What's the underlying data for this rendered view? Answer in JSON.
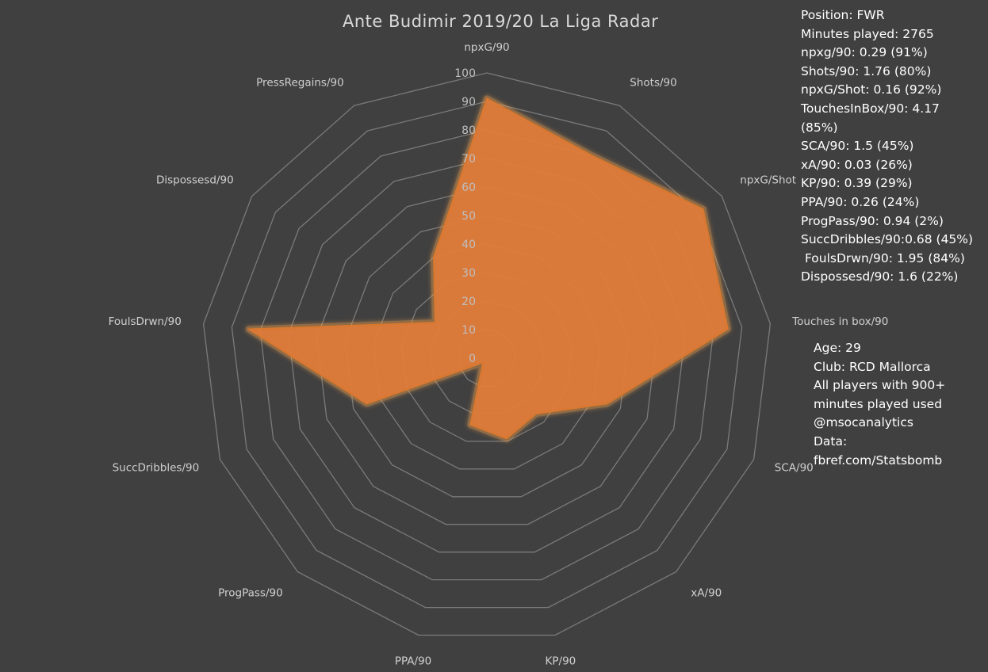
{
  "chart_data": {
    "type": "radar",
    "title": "Ante Budimir 2019/20 La Liga Radar",
    "categories": [
      "npxG/90",
      "Shots/90",
      "npxG/Shot",
      "Touches in box/90",
      "SCA/90",
      "xA/90",
      "KP/90",
      "PPA/90",
      "ProgPass/90",
      "SuccDribbles/90",
      "FoulsDrwn/90",
      "Dispossesd/90",
      "PressRegains/90"
    ],
    "series": [
      {
        "values": [
          91,
          80,
          92,
          85,
          45,
          26,
          29,
          24,
          2,
          45,
          84,
          22,
          40
        ]
      }
    ],
    "rlim": [
      0,
      100
    ],
    "ticks": [
      "0",
      "10",
      "20",
      "30",
      "40",
      "50",
      "60",
      "70",
      "80",
      "90",
      "100"
    ],
    "grid": true,
    "colors": {
      "fill": "#e07b39",
      "edge": "#d9782e",
      "glow": "#f0a050",
      "grid": "#7a7a7a",
      "tick_label": "#bfbfbf",
      "category_label": "#d0d0d0",
      "background": "#404040"
    }
  },
  "stats_lines": [
    "Position: FWR",
    "Minutes played: 2765",
    "npxg/90: 0.29 (91%)",
    "Shots/90: 1.76 (80%)",
    "npxG/Shot: 0.16 (92%)",
    "TouchesInBox/90: 4.17",
    "(85%)",
    "SCA/90: 1.5 (45%)",
    "xA/90: 0.03 (26%)",
    "KP/90: 0.39 (29%)",
    "PPA/90: 0.26 (24%)",
    "ProgPass/90: 0.94 (2%)",
    "SuccDribbles/90:0.68 (45%)",
    " FoulsDrwn/90: 1.95 (84%)",
    "Dispossesd/90: 1.6 (22%)"
  ],
  "meta_lines": [
    "Age: 29",
    "Club: RCD Mallorca",
    "All players with 900+",
    "minutes played used",
    "@msocanalytics",
    "Data:",
    "fbref.com/Statsbomb"
  ]
}
